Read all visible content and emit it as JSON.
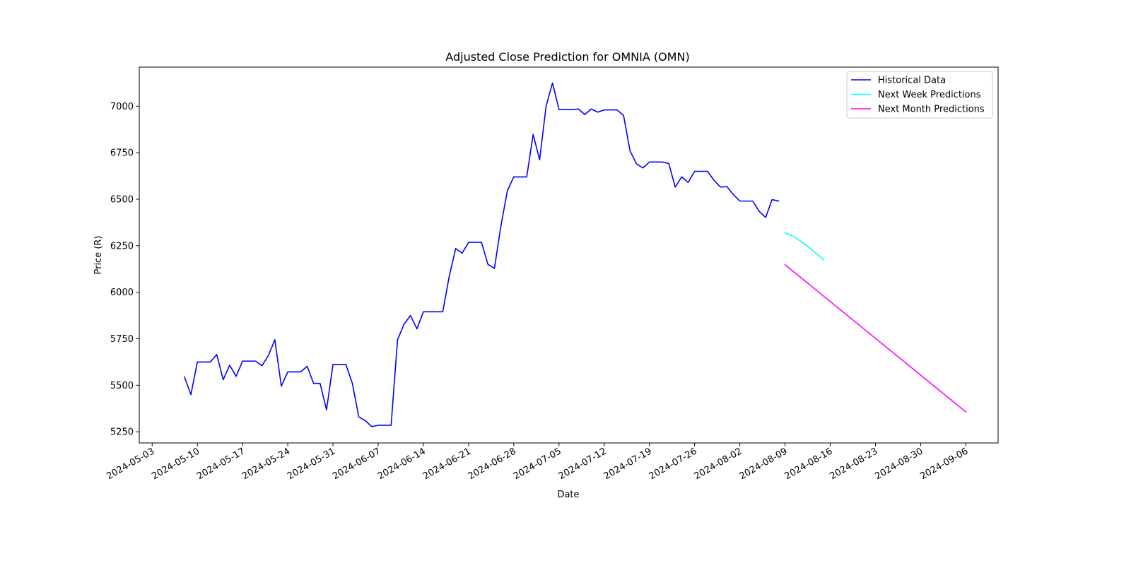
{
  "chart_data": {
    "type": "line",
    "title": "Adjusted Close Prediction for OMNIA (OMN)",
    "xlabel": "Date",
    "ylabel": "Price (R)",
    "xlim": [
      "2024-05-01",
      "2024-09-11"
    ],
    "ylim": [
      5190,
      7210
    ],
    "x_ticks": [
      "2024-05-03",
      "2024-05-10",
      "2024-05-17",
      "2024-05-24",
      "2024-05-31",
      "2024-06-07",
      "2024-06-14",
      "2024-06-21",
      "2024-06-28",
      "2024-07-05",
      "2024-07-12",
      "2024-07-19",
      "2024-07-26",
      "2024-08-02",
      "2024-08-09",
      "2024-08-16",
      "2024-08-23",
      "2024-08-30",
      "2024-09-06"
    ],
    "y_ticks": [
      5250,
      5500,
      5750,
      6000,
      6250,
      6500,
      6750,
      7000
    ],
    "grid": false,
    "legend_position": "top-right",
    "series": [
      {
        "name": "Historical Data",
        "color": "#0000ff",
        "points": [
          [
            "2024-05-08",
            5545
          ],
          [
            "2024-05-09",
            5450
          ],
          [
            "2024-05-10",
            5625
          ],
          [
            "2024-05-11",
            5625
          ],
          [
            "2024-05-12",
            5625
          ],
          [
            "2024-05-13",
            5665
          ],
          [
            "2024-05-14",
            5530
          ],
          [
            "2024-05-15",
            5608
          ],
          [
            "2024-05-16",
            5548
          ],
          [
            "2024-05-17",
            5630
          ],
          [
            "2024-05-18",
            5630
          ],
          [
            "2024-05-19",
            5630
          ],
          [
            "2024-05-20",
            5605
          ],
          [
            "2024-05-21",
            5660
          ],
          [
            "2024-05-22",
            5745
          ],
          [
            "2024-05-23",
            5495
          ],
          [
            "2024-05-24",
            5572
          ],
          [
            "2024-05-25",
            5572
          ],
          [
            "2024-05-26",
            5572
          ],
          [
            "2024-05-27",
            5602
          ],
          [
            "2024-05-28",
            5510
          ],
          [
            "2024-05-29",
            5510
          ],
          [
            "2024-05-30",
            5368
          ],
          [
            "2024-05-31",
            5612
          ],
          [
            "2024-06-01",
            5612
          ],
          [
            "2024-06-02",
            5612
          ],
          [
            "2024-06-03",
            5510
          ],
          [
            "2024-06-04",
            5330
          ],
          [
            "2024-06-05",
            5310
          ],
          [
            "2024-06-06",
            5278
          ],
          [
            "2024-06-07",
            5285
          ],
          [
            "2024-06-08",
            5285
          ],
          [
            "2024-06-09",
            5285
          ],
          [
            "2024-06-10",
            5745
          ],
          [
            "2024-06-11",
            5828
          ],
          [
            "2024-06-12",
            5875
          ],
          [
            "2024-06-13",
            5803
          ],
          [
            "2024-06-14",
            5895
          ],
          [
            "2024-06-15",
            5895
          ],
          [
            "2024-06-16",
            5895
          ],
          [
            "2024-06-17",
            5895
          ],
          [
            "2024-06-18",
            6085
          ],
          [
            "2024-06-19",
            6235
          ],
          [
            "2024-06-20",
            6210
          ],
          [
            "2024-06-21",
            6268
          ],
          [
            "2024-06-22",
            6268
          ],
          [
            "2024-06-23",
            6268
          ],
          [
            "2024-06-24",
            6150
          ],
          [
            "2024-06-25",
            6128
          ],
          [
            "2024-06-26",
            6355
          ],
          [
            "2024-06-27",
            6545
          ],
          [
            "2024-06-28",
            6620
          ],
          [
            "2024-06-29",
            6620
          ],
          [
            "2024-06-30",
            6620
          ],
          [
            "2024-07-01",
            6848
          ],
          [
            "2024-07-02",
            6712
          ],
          [
            "2024-07-03",
            7000
          ],
          [
            "2024-07-04",
            7125
          ],
          [
            "2024-07-05",
            6982
          ],
          [
            "2024-07-06",
            6982
          ],
          [
            "2024-07-07",
            6982
          ],
          [
            "2024-07-08",
            6985
          ],
          [
            "2024-07-09",
            6955
          ],
          [
            "2024-07-10",
            6985
          ],
          [
            "2024-07-11",
            6968
          ],
          [
            "2024-07-12",
            6980
          ],
          [
            "2024-07-13",
            6980
          ],
          [
            "2024-07-14",
            6980
          ],
          [
            "2024-07-15",
            6950
          ],
          [
            "2024-07-16",
            6760
          ],
          [
            "2024-07-17",
            6690
          ],
          [
            "2024-07-18",
            6668
          ],
          [
            "2024-07-19",
            6700
          ],
          [
            "2024-07-20",
            6700
          ],
          [
            "2024-07-21",
            6700
          ],
          [
            "2024-07-22",
            6692
          ],
          [
            "2024-07-23",
            6565
          ],
          [
            "2024-07-24",
            6620
          ],
          [
            "2024-07-25",
            6590
          ],
          [
            "2024-07-26",
            6650
          ],
          [
            "2024-07-27",
            6650
          ],
          [
            "2024-07-28",
            6650
          ],
          [
            "2024-07-29",
            6602
          ],
          [
            "2024-07-30",
            6565
          ],
          [
            "2024-07-31",
            6568
          ],
          [
            "2024-08-01",
            6525
          ],
          [
            "2024-08-02",
            6490
          ],
          [
            "2024-08-03",
            6490
          ],
          [
            "2024-08-04",
            6490
          ],
          [
            "2024-08-05",
            6435
          ],
          [
            "2024-08-06",
            6402
          ],
          [
            "2024-08-07",
            6498
          ],
          [
            "2024-08-08",
            6490
          ]
        ]
      },
      {
        "name": "Next Week Predictions",
        "color": "#00ffff",
        "points": [
          [
            "2024-08-09",
            6320
          ],
          [
            "2024-08-10",
            6305
          ],
          [
            "2024-08-11",
            6285
          ],
          [
            "2024-08-12",
            6260
          ],
          [
            "2024-08-13",
            6232
          ],
          [
            "2024-08-14",
            6203
          ],
          [
            "2024-08-15",
            6175
          ]
        ]
      },
      {
        "name": "Next Month Predictions",
        "color": "#ff00ff",
        "points": [
          [
            "2024-08-09",
            6148
          ],
          [
            "2024-09-06",
            5357
          ]
        ]
      }
    ]
  }
}
